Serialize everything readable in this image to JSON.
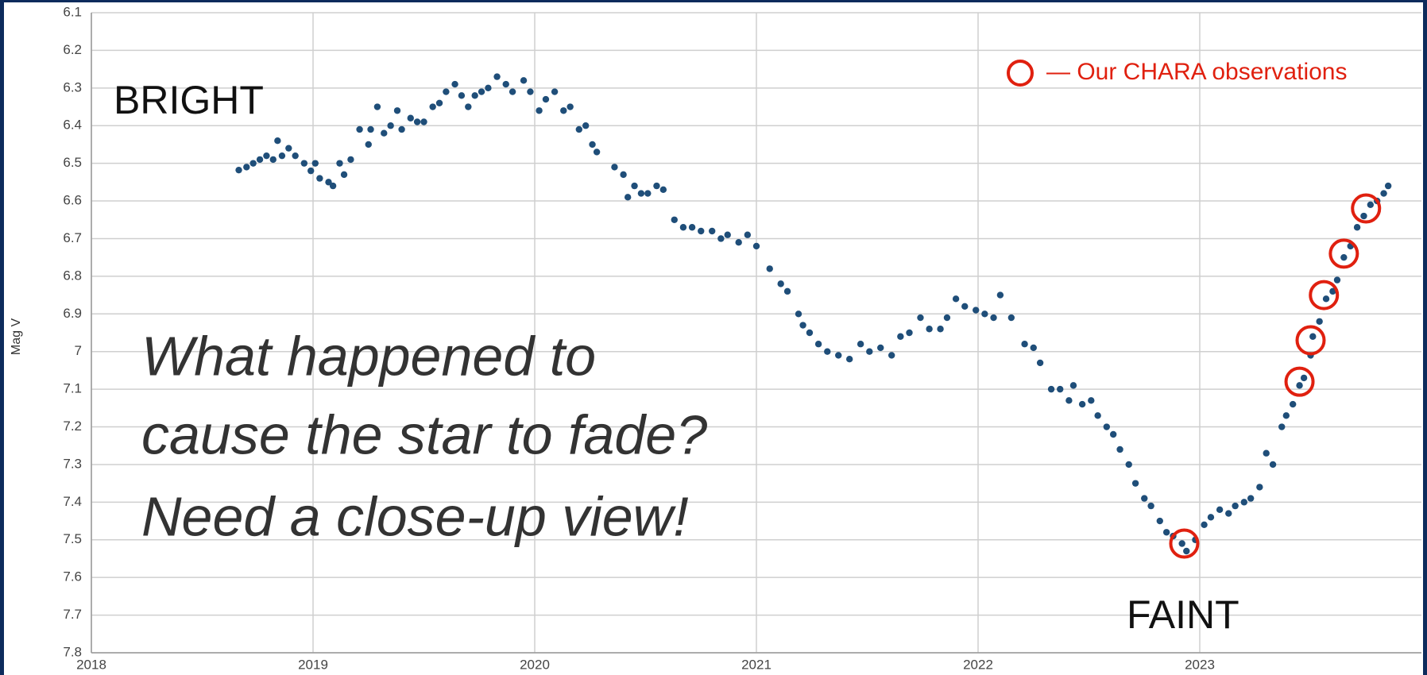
{
  "chart_data": {
    "type": "scatter",
    "y_label": "Mag V",
    "xlim": [
      2018,
      2024
    ],
    "xticks": [
      2018,
      2019,
      2020,
      2021,
      2022,
      2023
    ],
    "ylim": [
      6.1,
      7.8
    ],
    "y_inverted": true,
    "yticks": [
      6.1,
      6.2,
      6.3,
      6.4,
      6.5,
      6.6,
      6.7,
      6.8,
      6.9,
      7,
      7.1,
      7.2,
      7.3,
      7.4,
      7.5,
      7.6,
      7.7,
      7.8
    ],
    "grid": true,
    "legend": "top-right",
    "annotations": [
      "BRIGHT",
      "FAINT",
      "What happened to",
      "cause the star to fade?",
      "Need a close-up view!"
    ],
    "series": [
      {
        "color": "#1f4e79",
        "marker": "dot",
        "x": [
          2018.665,
          2018.7,
          2018.73,
          2018.76,
          2018.79,
          2018.82,
          2018.84,
          2018.86,
          2018.89,
          2018.92,
          2018.96,
          2018.99,
          2019.01,
          2019.03,
          2019.07,
          2019.09,
          2019.12,
          2019.14,
          2019.17,
          2019.21,
          2019.25,
          2019.26,
          2019.29,
          2019.32,
          2019.35,
          2019.38,
          2019.4,
          2019.44,
          2019.47,
          2019.5,
          2019.54,
          2019.57,
          2019.6,
          2019.64,
          2019.67,
          2019.7,
          2019.73,
          2019.76,
          2019.79,
          2019.83,
          2019.87,
          2019.9,
          2019.95,
          2019.98,
          2020.02,
          2020.05,
          2020.09,
          2020.13,
          2020.16,
          2020.2,
          2020.23,
          2020.26,
          2020.28,
          2020.36,
          2020.4,
          2020.42,
          2020.45,
          2020.48,
          2020.51,
          2020.55,
          2020.58,
          2020.63,
          2020.67,
          2020.71,
          2020.75,
          2020.8,
          2020.84,
          2020.87,
          2020.92,
          2020.96,
          2021.0,
          2021.06,
          2021.11,
          2021.14,
          2021.19,
          2021.21,
          2021.24,
          2021.28,
          2021.32,
          2021.37,
          2021.42,
          2021.47,
          2021.51,
          2021.56,
          2021.61,
          2021.65,
          2021.69,
          2021.74,
          2021.78,
          2021.83,
          2021.86,
          2021.9,
          2021.94,
          2021.99,
          2022.03,
          2022.07,
          2022.1,
          2022.15,
          2022.21,
          2022.25,
          2022.28,
          2022.33,
          2022.37,
          2022.41,
          2022.43,
          2022.47,
          2022.51,
          2022.54,
          2022.58,
          2022.61,
          2022.64,
          2022.68,
          2022.71,
          2022.75,
          2022.78,
          2022.82,
          2022.85,
          2022.88,
          2022.92,
          2022.94,
          2022.98,
          2023.02,
          2023.05,
          2023.09,
          2023.13,
          2023.16,
          2023.2,
          2023.23,
          2023.27,
          2023.3,
          2023.33,
          2023.37,
          2023.39,
          2023.42,
          2023.45,
          2023.47,
          2023.5,
          2023.51,
          2023.54,
          2023.57,
          2023.6,
          2023.62,
          2023.65,
          2023.68,
          2023.71,
          2023.74,
          2023.77,
          2023.8,
          2023.83,
          2023.85
        ],
        "values": [
          6.518,
          6.51,
          6.5,
          6.49,
          6.48,
          6.49,
          6.44,
          6.48,
          6.46,
          6.48,
          6.5,
          6.52,
          6.5,
          6.54,
          6.55,
          6.56,
          6.5,
          6.53,
          6.49,
          6.41,
          6.45,
          6.41,
          6.35,
          6.42,
          6.4,
          6.36,
          6.41,
          6.38,
          6.39,
          6.39,
          6.35,
          6.34,
          6.31,
          6.29,
          6.32,
          6.35,
          6.32,
          6.31,
          6.3,
          6.27,
          6.29,
          6.31,
          6.28,
          6.31,
          6.36,
          6.33,
          6.31,
          6.36,
          6.35,
          6.41,
          6.4,
          6.45,
          6.47,
          6.51,
          6.53,
          6.59,
          6.56,
          6.58,
          6.58,
          6.56,
          6.57,
          6.65,
          6.67,
          6.67,
          6.68,
          6.68,
          6.7,
          6.69,
          6.71,
          6.69,
          6.72,
          6.78,
          6.82,
          6.84,
          6.9,
          6.93,
          6.95,
          6.98,
          7.0,
          7.01,
          7.02,
          6.98,
          7.0,
          6.99,
          7.01,
          6.96,
          6.95,
          6.91,
          6.94,
          6.94,
          6.91,
          6.86,
          6.88,
          6.89,
          6.9,
          6.91,
          6.85,
          6.91,
          6.98,
          6.99,
          7.03,
          7.1,
          7.1,
          7.13,
          7.09,
          7.14,
          7.13,
          7.17,
          7.2,
          7.22,
          7.26,
          7.3,
          7.35,
          7.39,
          7.41,
          7.45,
          7.48,
          7.49,
          7.51,
          7.53,
          7.5,
          7.46,
          7.44,
          7.42,
          7.43,
          7.41,
          7.4,
          7.39,
          7.36,
          7.27,
          7.3,
          7.2,
          7.17,
          7.14,
          7.09,
          7.07,
          7.01,
          6.96,
          6.92,
          6.86,
          6.84,
          6.81,
          6.75,
          6.72,
          6.67,
          6.64,
          6.61,
          6.6,
          6.58,
          6.56
        ]
      },
      {
        "name": "— Our CHARA observations",
        "color": "#e0200f",
        "marker": "ring",
        "x": [
          2022.93,
          2023.45,
          2023.5,
          2023.56,
          2023.65,
          2023.75
        ],
        "values": [
          7.51,
          7.08,
          6.97,
          6.85,
          6.74,
          6.62
        ]
      }
    ]
  }
}
